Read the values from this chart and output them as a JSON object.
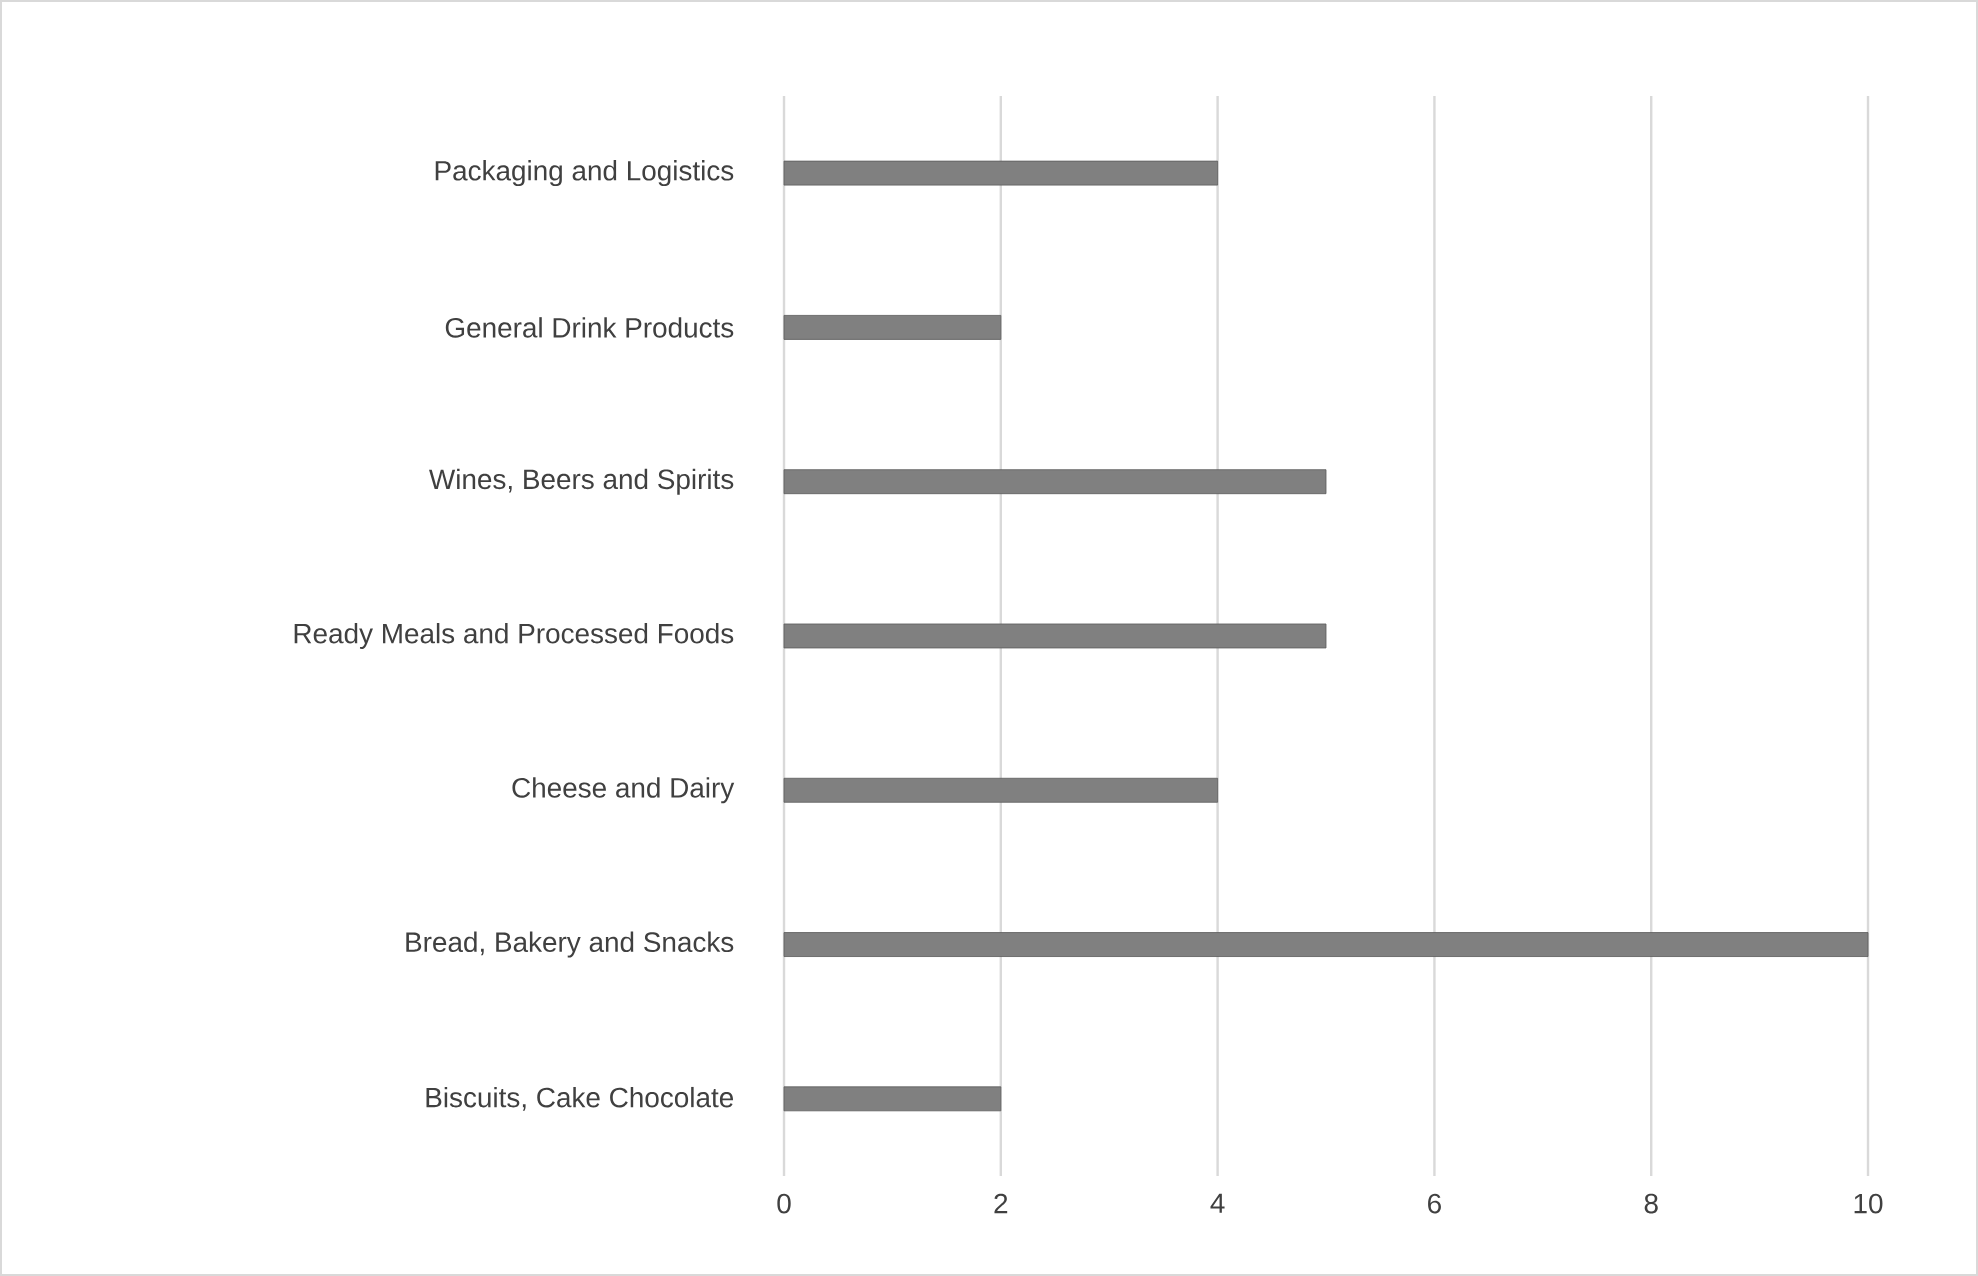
{
  "chart_data": {
    "type": "bar",
    "orientation": "horizontal",
    "categories": [
      "Packaging and Logistics",
      "General Drink Products",
      "Wines, Beers and Spirits",
      "Ready Meals and Processed Foods",
      "Cheese and Dairy",
      "Bread, Bakery and Snacks",
      "Biscuits, Cake Chocolate"
    ],
    "values": [
      4,
      2,
      5,
      5,
      4,
      10,
      2
    ],
    "color": "#808080",
    "xlim": [
      0,
      10
    ],
    "xticks": [
      0,
      2,
      4,
      6,
      8,
      10
    ],
    "grid": "x"
  }
}
